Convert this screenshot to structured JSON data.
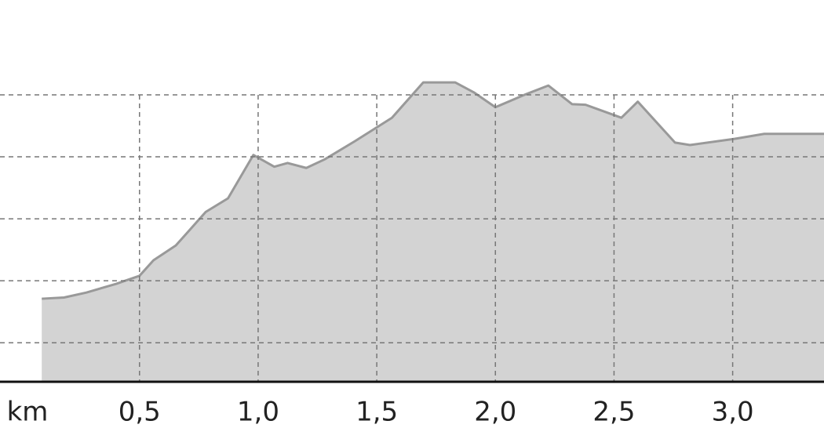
{
  "chart_data": {
    "type": "area",
    "x_label": "km",
    "x": [
      0.088,
      0.182,
      0.276,
      0.402,
      0.5,
      0.559,
      0.653,
      0.7,
      0.779,
      0.873,
      0.98,
      1.068,
      1.124,
      1.203,
      1.281,
      1.407,
      1.564,
      1.696,
      1.831,
      1.909,
      2.0,
      2.129,
      2.223,
      2.323,
      2.38,
      2.531,
      2.6,
      2.757,
      2.82,
      3.008,
      3.133,
      3.385
    ],
    "values": [
      1.71,
      1.73,
      1.81,
      1.95,
      2.08,
      2.33,
      2.57,
      2.77,
      3.11,
      3.33,
      4.03,
      3.84,
      3.9,
      3.82,
      3.96,
      4.25,
      4.63,
      5.2,
      5.2,
      5.04,
      4.8,
      5.01,
      5.15,
      4.85,
      4.84,
      4.63,
      4.89,
      4.23,
      4.19,
      4.29,
      4.37,
      4.37
    ],
    "color": "#d3d3d3",
    "line_color": "#999999",
    "xlim": [
      -0.088,
      3.385
    ],
    "ylim": [
      0.37,
      6.53
    ],
    "xticks": [
      {
        "value": 0.5,
        "label": "0,5"
      },
      {
        "value": 1.0,
        "label": "1,0"
      },
      {
        "value": 1.5,
        "label": "1,5"
      },
      {
        "value": 2.0,
        "label": "2,0"
      },
      {
        "value": 2.5,
        "label": "2,5"
      },
      {
        "value": 3.0,
        "label": "3,0"
      }
    ],
    "ygrid": [
      1,
      2,
      3,
      4,
      5
    ],
    "grid": true
  }
}
